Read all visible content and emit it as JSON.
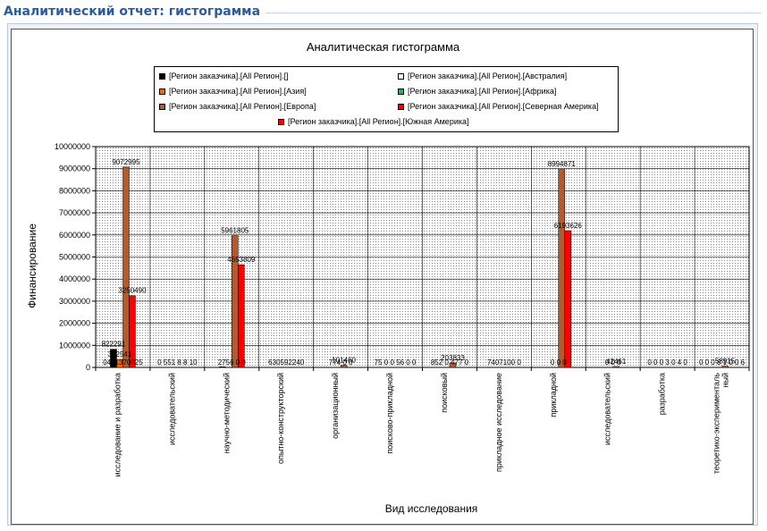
{
  "page": {
    "section_title": "Аналитический отчет: гистограмма"
  },
  "colors": {
    "accent": "#2c5aa0",
    "plot_bg": "#d9d9d9",
    "grid": "#000000"
  },
  "chart_data": {
    "type": "bar",
    "title": "Аналитическая гистограмма",
    "xlabel": "Вид исследования",
    "ylabel": "Финансирование",
    "ylim": [
      0,
      10000000
    ],
    "yticks": [
      0,
      1000000,
      2000000,
      3000000,
      4000000,
      5000000,
      6000000,
      7000000,
      8000000,
      9000000,
      10000000
    ],
    "grid": true,
    "legend_position": "top",
    "categories": [
      "исследование и разработка",
      "исследовательский",
      "научно-методический",
      "опытно-конструкторский",
      "организационный",
      "поисково-прикладной",
      "поисковый",
      "прикладное исследование",
      "прикладной",
      "исследовательский",
      "разработка",
      "теоретико-экспериментальный"
    ],
    "category_labels_display": [
      [
        "исследование и разработка"
      ],
      [
        "исследовательский"
      ],
      [
        "научно-методический"
      ],
      [
        "опытно-конструкторский"
      ],
      [
        "организационный"
      ],
      [
        "поисково-прикладной"
      ],
      [
        "поисковый"
      ],
      [
        "прикладное исследование"
      ],
      [
        "прикладной"
      ],
      [
        "исследовательский"
      ],
      [
        "разработка"
      ],
      [
        "теоретико-эксперименталь",
        "ный"
      ]
    ],
    "series": [
      {
        "name": "[Регион заказчика].[All Регион].[]",
        "color": "#000000",
        "values": [
          822291,
          0,
          27560,
          0,
          0,
          0,
          0,
          0,
          0,
          0,
          0,
          0
        ]
      },
      {
        "name": "[Регион заказчика].[All Регион].[Австралия]",
        "color": "#ffffff",
        "values": [
          0,
          0,
          0,
          0,
          0,
          0,
          0,
          0,
          0,
          0,
          0,
          0
        ]
      },
      {
        "name": "[Регион заказчика].[All Регион].[Азия]",
        "color": "#ff6600",
        "values": [
          362541,
          0,
          0,
          0,
          0,
          0,
          0,
          0,
          0,
          0,
          0,
          0
        ]
      },
      {
        "name": "[Регион заказчика].[All Регион].[Африка]",
        "color": "#33aa66",
        "values": [
          0,
          0,
          0,
          0,
          0,
          0,
          0,
          0,
          0,
          0,
          0,
          0
        ]
      },
      {
        "name": "[Регион заказчика].[All Регион].[Европа]",
        "color": "#b35a2e",
        "values": [
          9072995,
          0,
          5961805,
          0,
          101460,
          0,
          203833,
          0,
          8994871,
          42461,
          0,
          58915
        ]
      },
      {
        "name": "[Регион заказчика].[All Регион].[Северная Америка]",
        "color": "#ff0000",
        "values": [
          3250490,
          0,
          4653809,
          0,
          0,
          0,
          0,
          0,
          6193626,
          0,
          0,
          0
        ]
      },
      {
        "name": "[Регион заказчика].[All Регион].[Южная Америка]",
        "color": "#ff0000",
        "values": [
          0,
          0,
          0,
          0,
          0,
          0,
          0,
          0,
          0,
          0,
          0,
          0
        ]
      }
    ],
    "bar_series": [
      0,
      2,
      4,
      5
    ],
    "data_labels": [
      {
        "category": 0,
        "text": "822291",
        "value": 822291,
        "series": 0
      },
      {
        "category": 0,
        "text": "362541",
        "value": 362541,
        "series": 2
      },
      {
        "category": 0,
        "text": "9072995",
        "value": 9072995,
        "series": 4
      },
      {
        "category": 0,
        "text": "3250490",
        "value": 3250490,
        "series": 5
      },
      {
        "category": 2,
        "text": "5961805",
        "value": 5961805,
        "series": 4
      },
      {
        "category": 2,
        "text": "4653809",
        "value": 4653809,
        "series": 5
      },
      {
        "category": 4,
        "text": "101460",
        "value": 101460,
        "series": 4
      },
      {
        "category": 6,
        "text": "203833",
        "value": 203833,
        "series": 4
      },
      {
        "category": 8,
        "text": "8994871",
        "value": 8994871,
        "series": 4
      },
      {
        "category": 8,
        "text": "6193626",
        "value": 6193626,
        "series": 5
      },
      {
        "category": 9,
        "text": "42461",
        "value": 42461,
        "series": 4
      },
      {
        "category": 11,
        "text": "58915",
        "value": 58915,
        "series": 4
      }
    ],
    "baseline_labels": [
      {
        "category": 0,
        "text": "0431370025"
      },
      {
        "category": 1,
        "text": "0 551 8 8 10"
      },
      {
        "category": 2,
        "text": "2756 0 0"
      },
      {
        "category": 3,
        "text": "630592240"
      },
      {
        "category": 4,
        "text": "774 0 0"
      },
      {
        "category": 5,
        "text": "75 0 0 56 0 0"
      },
      {
        "category": 6,
        "text": "852 0 477 0"
      },
      {
        "category": 7,
        "text": "7407100 0"
      },
      {
        "category": 8,
        "text": "0 0 0"
      },
      {
        "category": 9,
        "text": "0 0 0"
      },
      {
        "category": 10,
        "text": "0 0 0 3 0 4 0"
      },
      {
        "category": 11,
        "text": "0 0 0 8 1 0 0 6"
      }
    ]
  }
}
